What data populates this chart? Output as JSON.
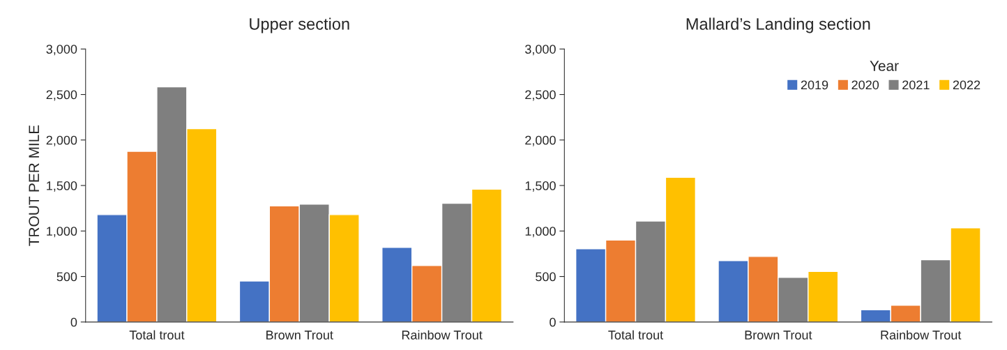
{
  "chart_data": [
    {
      "type": "bar",
      "title": "Upper section",
      "ylabel": "TROUT PER MILE",
      "categories": [
        "Total trout",
        "Brown Trout",
        "Rainbow Trout"
      ],
      "series": [
        {
          "color": "#4472c4",
          "values": [
            1180,
            450,
            820
          ]
        },
        {
          "color": "#ed7d31",
          "values": [
            1875,
            1275,
            620
          ]
        },
        {
          "color": "#7f7f7f",
          "values": [
            2585,
            1295,
            1305
          ]
        },
        {
          "color": "#ffc000",
          "values": [
            2125,
            1180,
            1460
          ]
        }
      ],
      "ylim": [
        0,
        3000
      ],
      "yticks": [
        0,
        500,
        {
          "value": 1000,
          "label": "1,000"
        },
        {
          "value": 1500,
          "label": "1,500"
        },
        {
          "value": 2000,
          "label": "2,000"
        },
        {
          "value": 2500,
          "label": "2,500"
        },
        {
          "value": 3000,
          "label": "3,000"
        }
      ],
      "grid": false,
      "legend": false
    },
    {
      "type": "bar",
      "title": "Mallard’s Landing section",
      "categories": [
        "Total trout",
        "Brown Trout",
        "Rainbow Trout"
      ],
      "legend_title": "Year",
      "series": [
        {
          "name": "2019",
          "color": "#4472c4",
          "values": [
            805,
            675,
            135
          ]
        },
        {
          "name": "2020",
          "color": "#ed7d31",
          "values": [
            900,
            720,
            185
          ]
        },
        {
          "name": "2021",
          "color": "#7f7f7f",
          "values": [
            1110,
            490,
            685
          ]
        },
        {
          "name": "2022",
          "color": "#ffc000",
          "values": [
            1590,
            555,
            1035
          ]
        }
      ],
      "ylim": [
        0,
        3000
      ],
      "yticks": [
        0,
        500,
        {
          "value": 1000,
          "label": "1,000"
        },
        {
          "value": 1500,
          "label": "1,500"
        },
        {
          "value": 2000,
          "label": "2,000"
        },
        {
          "value": 2500,
          "label": "2,500"
        },
        {
          "value": 3000,
          "label": "3,000"
        }
      ],
      "grid": false,
      "legend": "top right"
    }
  ]
}
